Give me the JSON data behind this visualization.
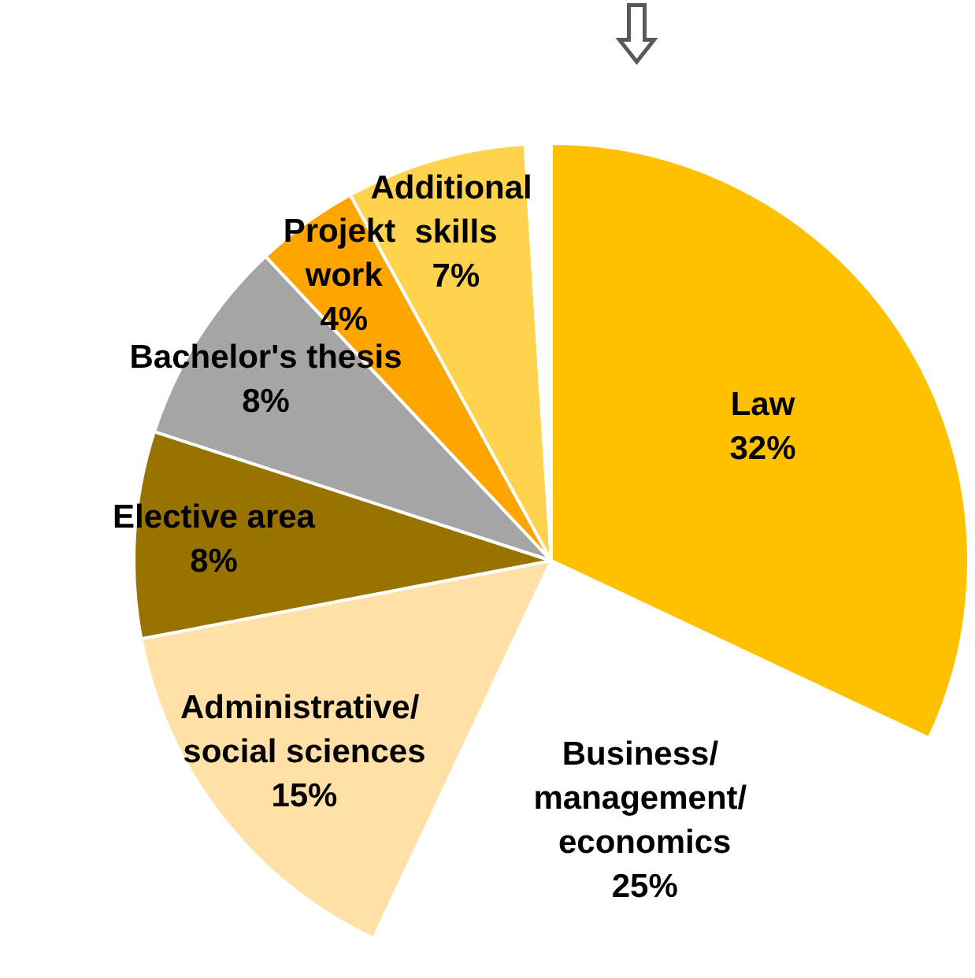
{
  "chart_data": {
    "type": "pie",
    "categories": [
      "Law",
      "Business/ management/ economics",
      "Administrative/ social sciences",
      "Elective area",
      "Bachelor's thesis",
      "Projekt work",
      "Additional skills",
      null
    ],
    "values": [
      32,
      25,
      15,
      8,
      8,
      4,
      7,
      1
    ],
    "colors": [
      "#ffc000",
      "#ffffff",
      "#ffe0a6",
      "#997300",
      "#a5a5a5",
      "#ffa500",
      "#ffd34d",
      "#ffffff"
    ],
    "value_labels": [
      "32%",
      "25%",
      "15%",
      "8%",
      "8%",
      "4%",
      "7%",
      null
    ],
    "legend": false
  }
}
